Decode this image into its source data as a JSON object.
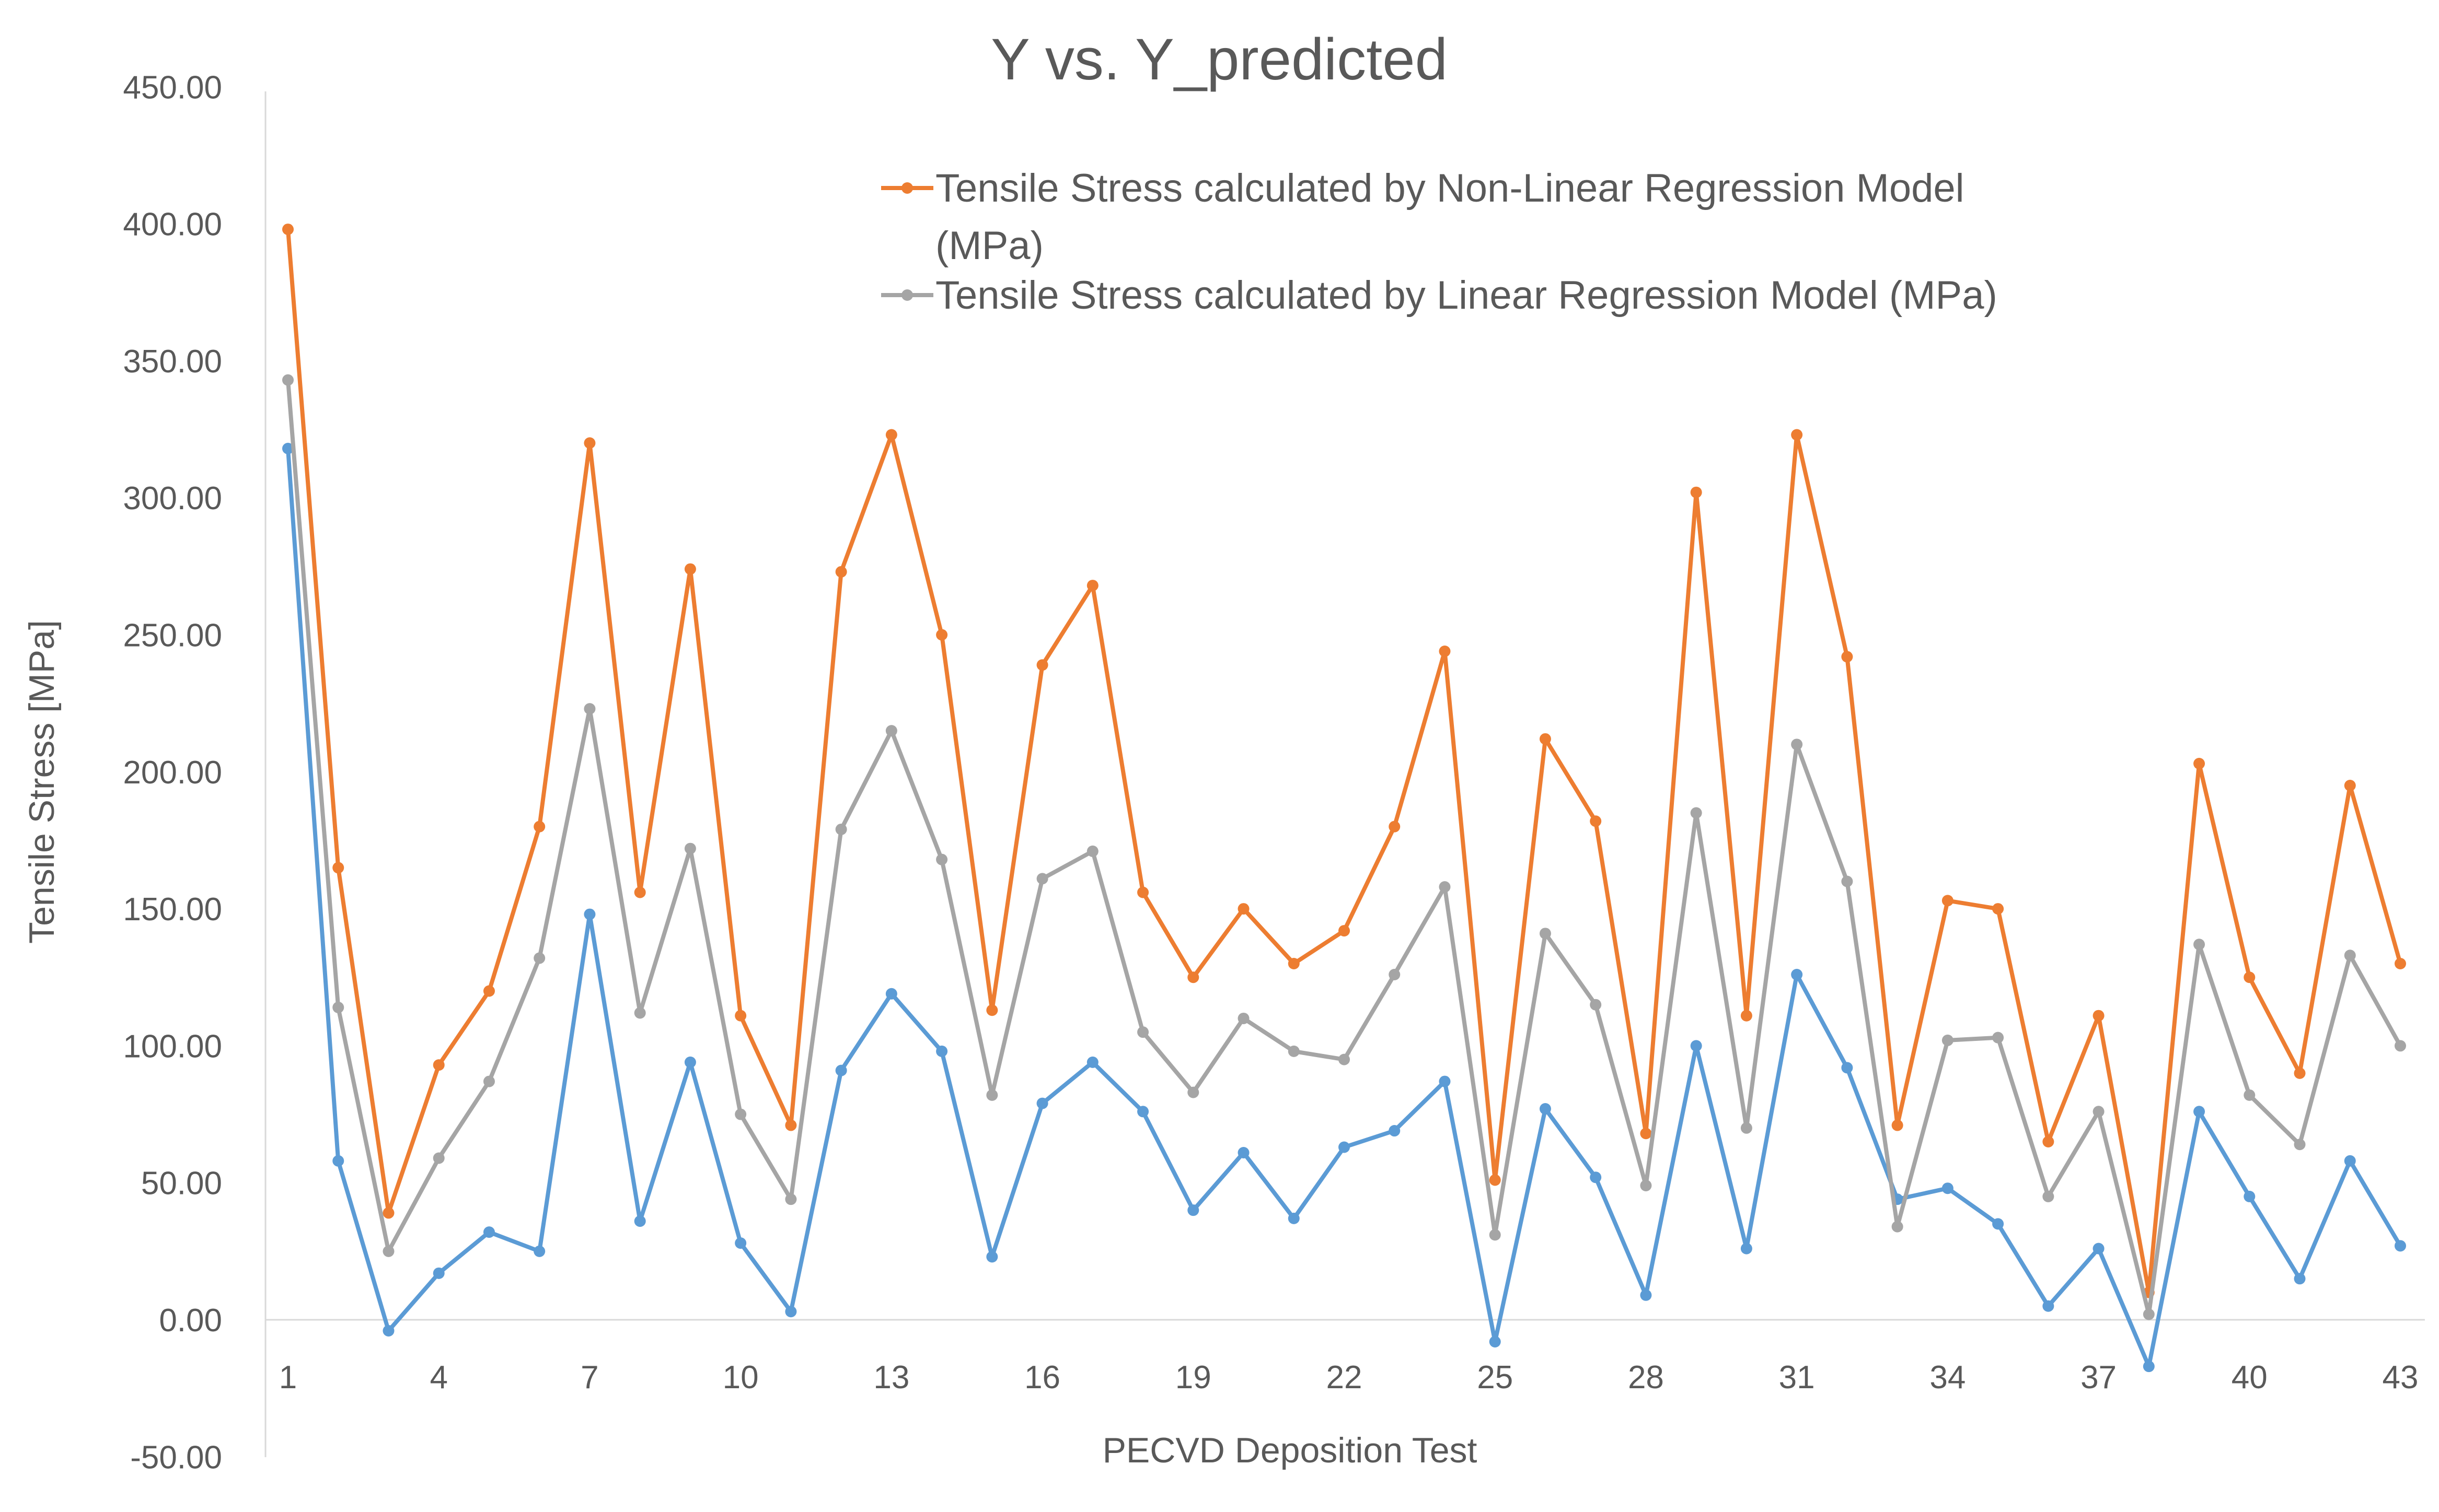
{
  "chart_data": {
    "type": "line",
    "title": "Y vs. Y_predicted",
    "xlabel": "PECVD Deposition Test",
    "ylabel": "Tensile Stress [MPa]",
    "x": [
      1,
      2,
      3,
      4,
      5,
      6,
      7,
      8,
      9,
      10,
      11,
      12,
      13,
      14,
      15,
      16,
      17,
      18,
      19,
      20,
      21,
      22,
      23,
      24,
      25,
      26,
      27,
      28,
      29,
      30,
      31,
      32,
      33,
      34,
      35,
      36,
      37,
      38,
      39,
      40,
      41,
      42,
      43
    ],
    "x_tick_labels": [
      "1",
      "4",
      "7",
      "10",
      "13",
      "16",
      "19",
      "22",
      "25",
      "28",
      "31",
      "34",
      "37",
      "40",
      "43"
    ],
    "y_tick_labels": [
      "-50.00",
      "0.00",
      "50.00",
      "100.00",
      "150.00",
      "200.00",
      "250.00",
      "300.00",
      "350.00",
      "400.00",
      "450.00"
    ],
    "ylim": [
      -50,
      450
    ],
    "grid": false,
    "legend_position": "top-right",
    "series": [
      {
        "name": "",
        "color": "#5B9BD5",
        "values": [
          318,
          58,
          -4,
          17,
          32,
          25,
          148,
          36,
          94,
          28,
          3,
          91,
          119,
          98,
          23,
          79,
          94,
          76,
          40,
          61,
          37,
          63,
          69,
          87,
          -8,
          77,
          52,
          9,
          100,
          26,
          126,
          92,
          44,
          48,
          35,
          5,
          26,
          -17,
          76,
          45,
          15,
          58,
          27
        ]
      },
      {
        "name": "Tensile Stress calculated by Non-Linear Regression Model (MPa)",
        "color": "#ED7D31",
        "values": [
          398,
          165,
          39,
          93,
          120,
          180,
          320,
          156,
          274,
          111,
          71,
          273,
          323,
          250,
          113,
          239,
          268,
          156,
          125,
          150,
          130,
          142,
          180,
          244,
          51,
          212,
          182,
          68,
          302,
          111,
          323,
          242,
          71,
          153,
          150,
          65,
          111,
          10,
          203,
          125,
          90,
          195,
          130
        ]
      },
      {
        "name": "Tensile Stress calculated by Linear Regression Model (MPa)",
        "color": "#A5A5A5",
        "values": [
          343,
          114,
          25,
          59,
          87,
          132,
          223,
          112,
          172,
          75,
          44,
          179,
          215,
          168,
          82,
          161,
          171,
          105,
          83,
          110,
          98,
          95,
          126,
          158,
          31,
          141,
          115,
          49,
          185,
          70,
          210,
          160,
          34,
          102,
          103,
          45,
          76,
          2,
          137,
          82,
          64,
          133,
          100
        ]
      }
    ]
  }
}
